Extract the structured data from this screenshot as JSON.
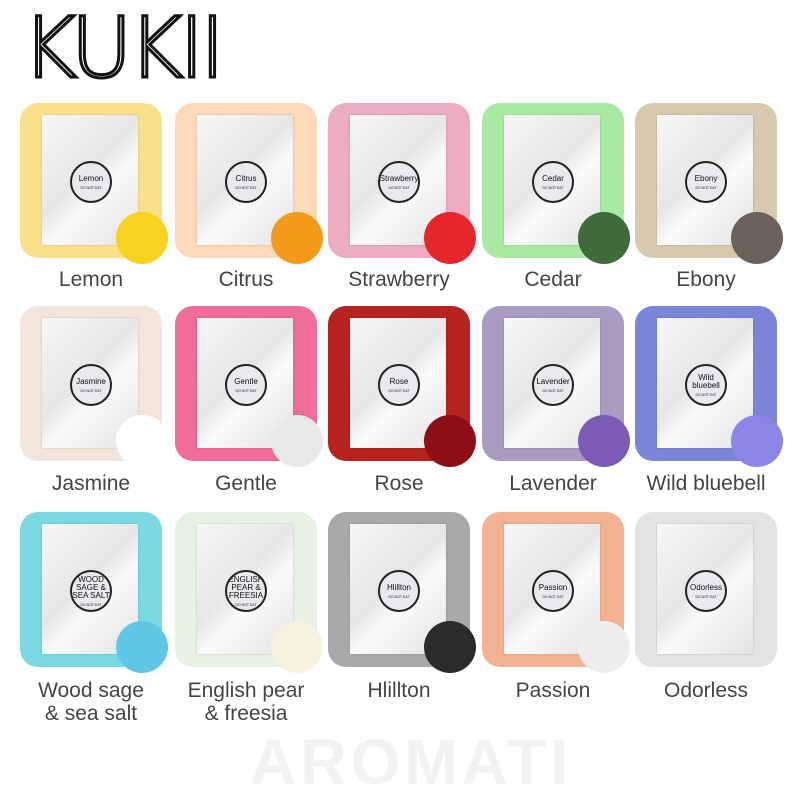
{
  "brand": "KUKII",
  "watermark": "AROMATI",
  "packet_warning": "DO NOT EAT",
  "scents": [
    {
      "name": "Lemon",
      "packet": "Lemon",
      "bg": "#fbe08c",
      "accent": "#f7d21e",
      "deco": "lemon-icon"
    },
    {
      "name": "Citrus",
      "packet": "Citrus",
      "bg": "#fcd9b8",
      "accent": "#f39a1a",
      "deco": "orange-icon"
    },
    {
      "name": "Strawberry",
      "packet": "Strawberry",
      "bg": "#eeacc2",
      "accent": "#e5262d",
      "deco": "strawberry-icon"
    },
    {
      "name": "Cedar",
      "packet": "Cedar",
      "bg": "#a8eaa4",
      "accent": "#3f6b3a",
      "deco": "cedar-branch-icon"
    },
    {
      "name": "Ebony",
      "packet": "Ebony",
      "bg": "#d7c9ae",
      "accent": "#6b615a",
      "deco": "wood-log-icon"
    },
    {
      "name": "Jasmine",
      "packet": "Jasmine",
      "bg": "#f3e5dc",
      "accent": "#ffffff",
      "deco": "jasmine-flower-icon"
    },
    {
      "name": "Gentle",
      "packet": "Gentle",
      "bg": "#f06c9a",
      "accent": "#e8e8e8",
      "deco": "reed-diffuser-icon"
    },
    {
      "name": "Rose",
      "packet": "Rose",
      "bg": "#b7231e",
      "accent": "#8e0f15",
      "deco": "rose-icon"
    },
    {
      "name": "Lavender",
      "packet": "Lavender",
      "bg": "#a99cc0",
      "accent": "#7b5bb5",
      "deco": "lavender-icon"
    },
    {
      "name": "Wild bluebell",
      "packet": "Wild bluebell",
      "bg": "#7b86d9",
      "accent": "#8a86e6",
      "deco": "bluebell-icon"
    },
    {
      "name": "Wood sage\n& sea salt",
      "packet": "WOOD SAGE & SEA SALT",
      "bg": "#7ad9e2",
      "accent": "#5fc7e4",
      "deco": "sea-salt-shell-icon"
    },
    {
      "name": "English pear\n& freesia",
      "packet": "ENGLISH PEAR & FREESIA",
      "bg": "#e8f2e3",
      "accent": "#f5f2df",
      "deco": "freesia-flower-icon"
    },
    {
      "name": "Hlillton",
      "packet": "Hlillton",
      "bg": "#a9a9a9",
      "accent": "#2b2b2b",
      "deco": "diffuser-bottle-icon"
    },
    {
      "name": "Passion",
      "packet": "Passion",
      "bg": "#f3b393",
      "accent": "#eeeeee",
      "deco": "reed-diffuser-icon"
    },
    {
      "name": "Odorless",
      "packet": "Odorless",
      "bg": "#e3e3e3",
      "accent": "",
      "deco": ""
    }
  ]
}
